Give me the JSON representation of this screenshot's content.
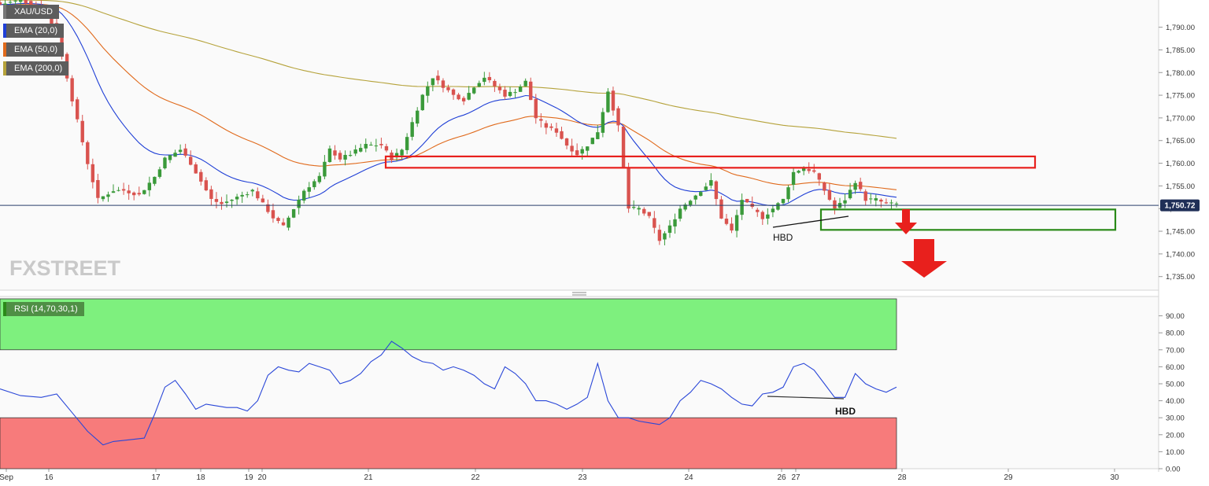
{
  "chart_data": [
    {
      "type": "candlestick",
      "symbol": "XAU/USD",
      "indicators": [
        {
          "name": "EMA (20,0)",
          "color": "#1f3fd6"
        },
        {
          "name": "EMA (50,0)",
          "color": "#e06a1c"
        },
        {
          "name": "EMA (200,0)",
          "color": "#b5a23a"
        }
      ],
      "ylim": [
        1732,
        1796
      ],
      "y_ticks": [
        "1,735.00",
        "1,740.00",
        "1,745.00",
        "1,750.00",
        "1,755.00",
        "1,760.00",
        "1,765.00",
        "1,770.00",
        "1,775.00",
        "1,780.00",
        "1,785.00",
        "1,790.00"
      ],
      "last_price": 1750.72,
      "last_price_label": "1,750.72",
      "x_labels": [
        "Sep",
        "16",
        "17",
        "18",
        "19",
        "20",
        "21",
        "22",
        "23",
        "24",
        "26",
        "27",
        "28",
        "29",
        "30"
      ],
      "resistance_zone": [
        1759,
        1761.5
      ],
      "support_zone": [
        1745.3,
        1749.8
      ],
      "annotation": "HBD",
      "watermark": "FXSTREET",
      "close_path": [
        [
          0,
          1795
        ],
        [
          4,
          1796
        ],
        [
          8,
          1794
        ],
        [
          11,
          1789
        ],
        [
          14,
          1774
        ],
        [
          17,
          1760
        ],
        [
          19,
          1752
        ],
        [
          22,
          1754
        ],
        [
          24,
          1754
        ],
        [
          27,
          1753
        ],
        [
          30,
          1757
        ],
        [
          32,
          1761
        ],
        [
          35,
          1763
        ],
        [
          37,
          1760
        ],
        [
          39,
          1756
        ],
        [
          41,
          1752
        ],
        [
          43,
          1751
        ],
        [
          45,
          1752
        ],
        [
          47,
          1753
        ],
        [
          49,
          1754
        ],
        [
          51,
          1751
        ],
        [
          53,
          1748
        ],
        [
          55,
          1746
        ],
        [
          57,
          1750
        ],
        [
          59,
          1754
        ],
        [
          62,
          1757
        ],
        [
          64,
          1763
        ],
        [
          66,
          1761
        ],
        [
          68,
          1762
        ],
        [
          71,
          1764
        ],
        [
          74,
          1764
        ],
        [
          76,
          1761
        ],
        [
          78,
          1763
        ],
        [
          80,
          1769
        ],
        [
          82,
          1775
        ],
        [
          84,
          1779
        ],
        [
          86,
          1777
        ],
        [
          88,
          1775
        ],
        [
          90,
          1774
        ],
        [
          92,
          1777
        ],
        [
          94,
          1779
        ],
        [
          96,
          1777
        ],
        [
          98,
          1775
        ],
        [
          100,
          1776
        ],
        [
          102,
          1778
        ],
        [
          104,
          1770
        ],
        [
          106,
          1768
        ],
        [
          108,
          1767
        ],
        [
          110,
          1764
        ],
        [
          112,
          1762
        ],
        [
          114,
          1764
        ],
        [
          116,
          1767
        ],
        [
          118,
          1776
        ],
        [
          120,
          1768
        ],
        [
          122,
          1750
        ],
        [
          124,
          1750
        ],
        [
          126,
          1748
        ],
        [
          128,
          1743
        ],
        [
          130,
          1746
        ],
        [
          132,
          1750
        ],
        [
          134,
          1752
        ],
        [
          136,
          1754
        ],
        [
          138,
          1756
        ],
        [
          140,
          1748
        ],
        [
          142,
          1745
        ],
        [
          144,
          1752
        ],
        [
          146,
          1750
        ],
        [
          148,
          1748
        ],
        [
          150,
          1750
        ],
        [
          152,
          1752
        ],
        [
          154,
          1758
        ],
        [
          156,
          1759
        ],
        [
          158,
          1758
        ],
        [
          160,
          1754
        ],
        [
          162,
          1750
        ],
        [
          164,
          1752
        ],
        [
          166,
          1756
        ],
        [
          168,
          1752
        ],
        [
          170,
          1752
        ],
        [
          172,
          1751
        ],
        [
          174,
          1751
        ]
      ]
    },
    {
      "type": "line",
      "indicator": "RSI (14,70,30,1)",
      "ylim": [
        0,
        100
      ],
      "overbought": 70,
      "oversold": 30,
      "y_ticks": [
        "0.00",
        "10.00",
        "20.00",
        "30.00",
        "40.00",
        "50.00",
        "60.00",
        "70.00",
        "80.00",
        "90.00"
      ],
      "annotation": "HBD",
      "values": [
        [
          0,
          47
        ],
        [
          4,
          43
        ],
        [
          8,
          42
        ],
        [
          11,
          44
        ],
        [
          14,
          33
        ],
        [
          17,
          22
        ],
        [
          20,
          14
        ],
        [
          22,
          16
        ],
        [
          25,
          17
        ],
        [
          28,
          18
        ],
        [
          30,
          32
        ],
        [
          32,
          48
        ],
        [
          34,
          52
        ],
        [
          36,
          44
        ],
        [
          38,
          35
        ],
        [
          40,
          38
        ],
        [
          42,
          37
        ],
        [
          44,
          36
        ],
        [
          46,
          36
        ],
        [
          48,
          34
        ],
        [
          50,
          40
        ],
        [
          52,
          55
        ],
        [
          54,
          60
        ],
        [
          56,
          58
        ],
        [
          58,
          57
        ],
        [
          60,
          62
        ],
        [
          62,
          60
        ],
        [
          64,
          58
        ],
        [
          66,
          50
        ],
        [
          68,
          52
        ],
        [
          70,
          56
        ],
        [
          72,
          63
        ],
        [
          74,
          67
        ],
        [
          76,
          75
        ],
        [
          78,
          71
        ],
        [
          80,
          66
        ],
        [
          82,
          63
        ],
        [
          84,
          62
        ],
        [
          86,
          58
        ],
        [
          88,
          60
        ],
        [
          90,
          58
        ],
        [
          92,
          55
        ],
        [
          94,
          50
        ],
        [
          96,
          47
        ],
        [
          98,
          60
        ],
        [
          100,
          56
        ],
        [
          102,
          50
        ],
        [
          104,
          40
        ],
        [
          106,
          40
        ],
        [
          108,
          38
        ],
        [
          110,
          35
        ],
        [
          112,
          38
        ],
        [
          114,
          42
        ],
        [
          116,
          62
        ],
        [
          118,
          40
        ],
        [
          120,
          30
        ],
        [
          122,
          30
        ],
        [
          124,
          28
        ],
        [
          126,
          27
        ],
        [
          128,
          26
        ],
        [
          130,
          30
        ],
        [
          132,
          40
        ],
        [
          134,
          45
        ],
        [
          136,
          52
        ],
        [
          138,
          50
        ],
        [
          140,
          47
        ],
        [
          142,
          42
        ],
        [
          144,
          38
        ],
        [
          146,
          37
        ],
        [
          148,
          44
        ],
        [
          150,
          45
        ],
        [
          152,
          48
        ],
        [
          154,
          60
        ],
        [
          156,
          62
        ],
        [
          158,
          58
        ],
        [
          160,
          50
        ],
        [
          162,
          42
        ],
        [
          164,
          42
        ],
        [
          166,
          56
        ],
        [
          168,
          50
        ],
        [
          170,
          47
        ],
        [
          172,
          45
        ],
        [
          174,
          48
        ]
      ]
    }
  ]
}
